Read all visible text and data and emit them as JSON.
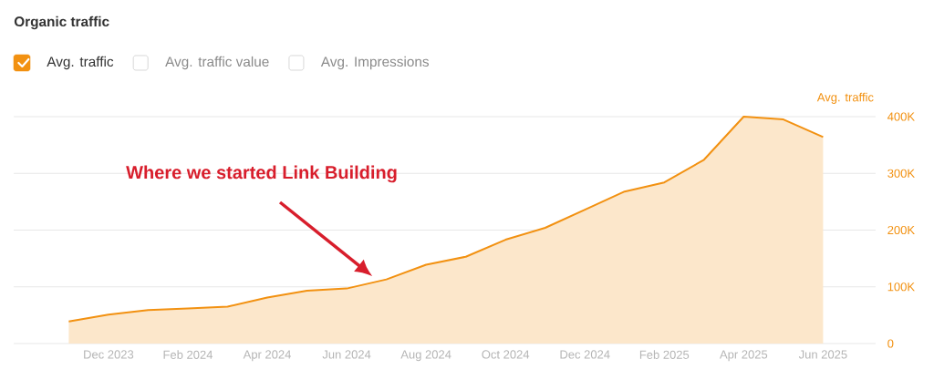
{
  "chart_data": {
    "type": "area",
    "title": "Organic traffic",
    "ylabel": "Avg. traffic",
    "x": [
      "2023-11",
      "2023-12",
      "2024-01",
      "2024-02",
      "2024-03",
      "2024-04",
      "2024-05",
      "2024-06",
      "2024-07",
      "2024-08",
      "2024-09",
      "2024-10",
      "2024-11",
      "2024-12",
      "2025-01",
      "2025-02",
      "2025-03",
      "2025-04",
      "2025-05",
      "2025-06"
    ],
    "series": [
      {
        "name": "Avg. traffic",
        "color": "#f29111",
        "values": [
          39000,
          51000,
          59000,
          62000,
          65000,
          81000,
          93000,
          97000,
          113000,
          139000,
          153000,
          183000,
          204000,
          236000,
          268000,
          284000,
          324000,
          400000,
          395000,
          364000
        ]
      }
    ],
    "xlim": [
      "2023-09-20",
      "2025-07-11"
    ],
    "ylim": [
      0,
      400000
    ],
    "xticks": [
      {
        "value": "2023-12",
        "label": "Dec 2023"
      },
      {
        "value": "2024-02",
        "label": "Feb 2024"
      },
      {
        "value": "2024-04",
        "label": "Apr 2024"
      },
      {
        "value": "2024-06",
        "label": "Jun 2024"
      },
      {
        "value": "2024-08",
        "label": "Aug 2024"
      },
      {
        "value": "2024-10",
        "label": "Oct 2024"
      },
      {
        "value": "2024-12",
        "label": "Dec 2024"
      },
      {
        "value": "2025-02",
        "label": "Feb 2025"
      },
      {
        "value": "2025-04",
        "label": "Apr 2025"
      },
      {
        "value": "2025-06",
        "label": "Jun 2025"
      }
    ],
    "yticks": [
      0,
      {
        "value": 100000,
        "label": "100K"
      },
      {
        "value": 200000,
        "label": "200K"
      },
      {
        "value": 300000,
        "label": "300K"
      },
      {
        "value": 400000,
        "label": "400K"
      }
    ],
    "grid": "y",
    "legend": "top left",
    "annotations": [
      "Avg. traffic value",
      "Avg. Impressions",
      "Where we started Link Building"
    ]
  }
}
